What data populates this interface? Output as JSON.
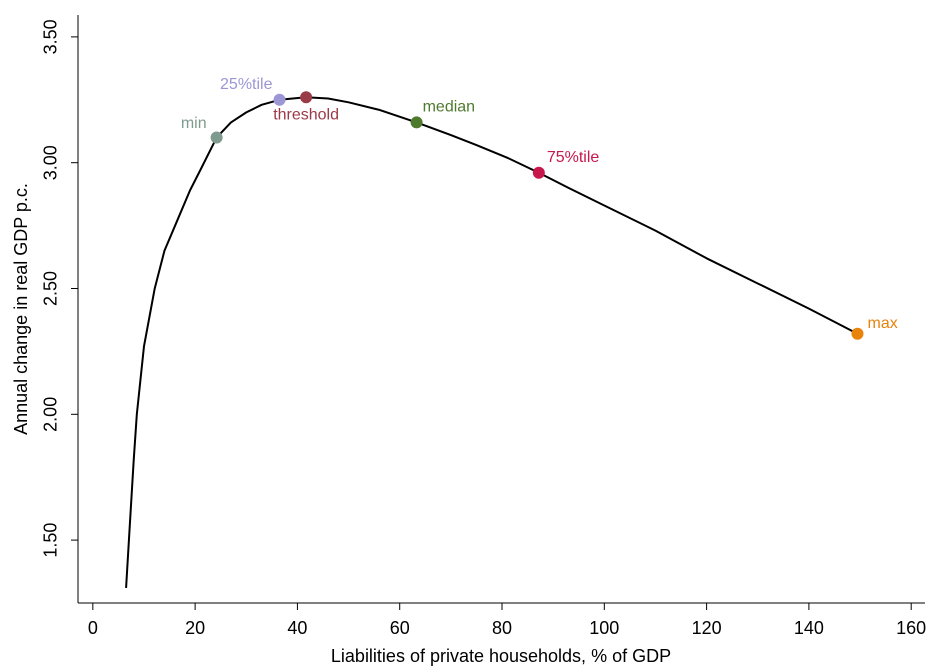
{
  "chart_data": {
    "type": "line",
    "x_label": "Liabilities of private households, % of GDP",
    "y_label": "Annual change in real GDP p.c.",
    "xlim": [
      -2.9,
      162.7
    ],
    "ylim": [
      1.25,
      3.587
    ],
    "xticks": [
      0,
      20,
      40,
      60,
      80,
      100,
      120,
      140,
      160
    ],
    "yticks": [
      {
        "value": 1.5,
        "label": "1.50"
      },
      {
        "value": 2.0,
        "label": "2.00"
      },
      {
        "value": 2.5,
        "label": "2.50"
      },
      {
        "value": 3.0,
        "label": "3.00"
      },
      {
        "value": 3.5,
        "label": "3.50"
      }
    ],
    "line": {
      "color": "#000000",
      "x": [
        6.5,
        7.2,
        8.0,
        8.6,
        10.0,
        12.1,
        14.0,
        16.5,
        19.0,
        21.0,
        24.2,
        27.0,
        30.0,
        33.0,
        36.5,
        41.7,
        46.0,
        50.0,
        56.0,
        63.3,
        70.0,
        75.0,
        81.0,
        87.2,
        93.0,
        100.0,
        110.0,
        120.0,
        130.0,
        140.0,
        149.5
      ],
      "y": [
        1.31,
        1.55,
        1.82,
        2.0,
        2.27,
        2.5,
        2.65,
        2.77,
        2.89,
        2.97,
        3.1,
        3.16,
        3.2,
        3.23,
        3.25,
        3.26,
        3.255,
        3.24,
        3.21,
        3.16,
        3.11,
        3.07,
        3.02,
        2.96,
        2.9,
        2.83,
        2.73,
        2.62,
        2.52,
        2.42,
        2.32
      ]
    },
    "points": [
      {
        "label": "min",
        "x": 24.2,
        "y": 3.1,
        "color": "#7f9a8f"
      },
      {
        "label": "25%tile",
        "x": 36.5,
        "y": 3.25,
        "color": "#9b96d6"
      },
      {
        "label": "threshold",
        "x": 41.7,
        "y": 3.26,
        "color": "#9b3a47"
      },
      {
        "label": "median",
        "x": 63.3,
        "y": 3.16,
        "color": "#4e7a2e"
      },
      {
        "label": "75%tile",
        "x": 87.2,
        "y": 2.96,
        "color": "#c8174a"
      },
      {
        "label": "max",
        "x": 149.5,
        "y": 2.32,
        "color": "#e8830c"
      }
    ]
  }
}
